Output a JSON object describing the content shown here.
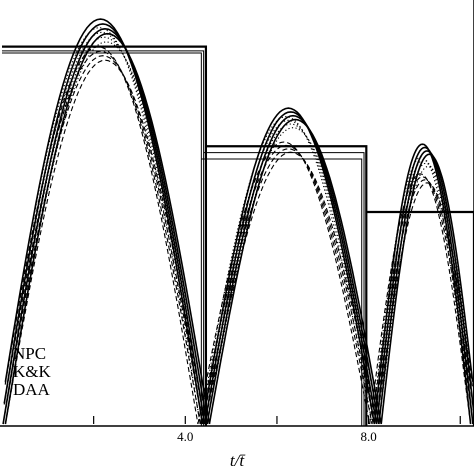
{
  "chart_data": {
    "type": "line",
    "title": "",
    "xlabel": "t/t̄",
    "ylabel": "",
    "xlim": [
      0.0,
      10.3
    ],
    "ylim": [
      0.0,
      1.0
    ],
    "x_ticks": [
      4.0,
      8.0
    ],
    "x_tick_labels": [
      "4.0",
      "8.0"
    ],
    "grid": false,
    "legend_position": "bottom-left",
    "legend": [
      "NPC",
      "K&K",
      "DAA"
    ],
    "series": [
      {
        "name": "NPC",
        "style": "solid",
        "arcs": [
          {
            "start": 0.0,
            "end": 4.45,
            "peak": 0.955
          },
          {
            "start": 4.45,
            "end": 8.2,
            "peak": 0.745
          },
          {
            "start": 8.2,
            "end": 10.3,
            "peak": 0.66
          }
        ],
        "step_levels": [
          {
            "x_start": 0.0,
            "x_end": 4.45,
            "y": 0.89
          },
          {
            "x_start": 4.45,
            "x_end": 7.95,
            "y": 0.655
          },
          {
            "x_start": 7.95,
            "x_end": 10.3,
            "y": 0.5
          }
        ]
      },
      {
        "name": "K&K",
        "style": "dotted",
        "arcs": [
          {
            "start": 0.0,
            "end": 4.4,
            "peak": 0.935
          },
          {
            "start": 4.4,
            "end": 8.15,
            "peak": 0.725
          },
          {
            "start": 8.15,
            "end": 10.3,
            "peak": 0.63
          }
        ],
        "step_levels": [
          {
            "x_start": 0.0,
            "x_end": 4.4,
            "y": 0.88
          },
          {
            "x_start": 4.4,
            "x_end": 7.9,
            "y": 0.64
          }
        ]
      },
      {
        "name": "DAA",
        "style": "dashed",
        "arcs": [
          {
            "start": 0.0,
            "end": 4.35,
            "peak": 0.89
          },
          {
            "start": 4.35,
            "end": 8.1,
            "peak": 0.665
          },
          {
            "start": 8.1,
            "end": 10.3,
            "peak": 0.59
          }
        ],
        "step_levels": [
          {
            "x_start": 0.0,
            "x_end": 4.35,
            "y": 0.875
          },
          {
            "x_start": 4.35,
            "x_end": 7.85,
            "y": 0.625
          }
        ]
      }
    ]
  }
}
